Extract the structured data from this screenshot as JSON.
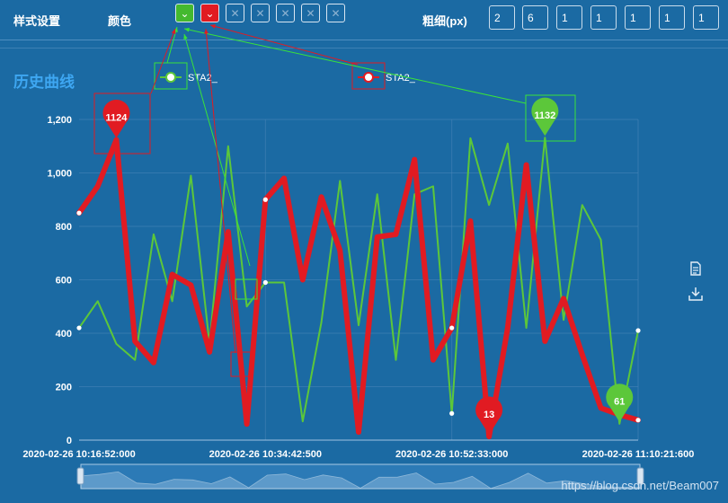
{
  "toolbar": {
    "style_label": "样式设置",
    "color_label": "颜色",
    "width_label": "粗细(px)",
    "swatch_selected_glyph": "⌄",
    "swatch_empty_glyph": "✕",
    "swatch_colors": [
      "#44b92f",
      "#e11b22"
    ],
    "width_values": [
      "2",
      "6",
      "1",
      "1",
      "1",
      "1",
      "1"
    ]
  },
  "section_title": "历史曲线",
  "watermark": "https://blog.csdn.net/Beam007",
  "chart_data": {
    "type": "line",
    "title": "",
    "xlabel": "",
    "ylabel": "",
    "ylim": [
      0,
      1200
    ],
    "yticks": [
      0,
      200,
      400,
      600,
      800,
      1000,
      1200
    ],
    "ytick_labels": [
      "0",
      "200",
      "400",
      "600",
      "800",
      "1,000",
      "1,200"
    ],
    "xticks_index": [
      0,
      10,
      20,
      30
    ],
    "xtick_labels": [
      "2020-02-26 10:16:52:000",
      "2020-02-26 10:34:42:500",
      "2020-02-26 10:52:33:000",
      "2020-02-26 11:10:21:600"
    ],
    "grid": true,
    "legend": [
      "STA2_",
      "STA2_"
    ],
    "series": [
      {
        "name": "STA2_",
        "color": "#e11b22",
        "line_width": 6,
        "values": [
          850,
          950,
          1124,
          370,
          290,
          620,
          580,
          330,
          780,
          60,
          900,
          980,
          600,
          910,
          710,
          30,
          760,
          770,
          1050,
          300,
          420,
          820,
          13,
          420,
          1030,
          370,
          530,
          320,
          120,
          95,
          75
        ],
        "max_label": "1124",
        "min_label": "13"
      },
      {
        "name": "STA2_",
        "color": "#5cc73a",
        "line_width": 2,
        "values": [
          420,
          520,
          360,
          300,
          770,
          520,
          990,
          360,
          1100,
          500,
          590,
          590,
          70,
          440,
          970,
          430,
          920,
          300,
          920,
          950,
          100,
          1130,
          880,
          1110,
          420,
          1132,
          450,
          880,
          750,
          61,
          410
        ],
        "max_label": "1132",
        "min_label": "61"
      }
    ]
  }
}
